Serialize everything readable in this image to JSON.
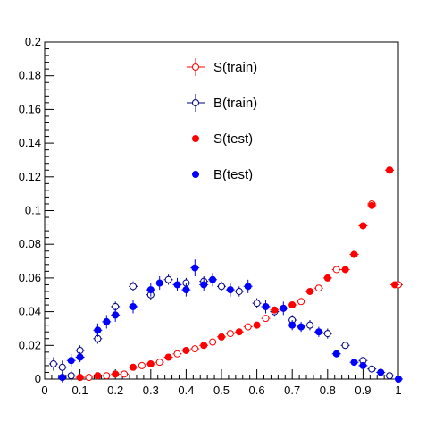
{
  "chart_data": {
    "type": "scatter",
    "xlim": [
      0,
      1
    ],
    "ylim": [
      0,
      0.2
    ],
    "x_ticks": [
      "0",
      "0.1",
      "0.2",
      "0.3",
      "0.4",
      "0.5",
      "0.6",
      "0.7",
      "0.8",
      "0.9",
      "1"
    ],
    "y_ticks": [
      "0",
      "0.02",
      "0.04",
      "0.06",
      "0.08",
      "0.1",
      "0.12",
      "0.14",
      "0.16",
      "0.18",
      "0.2"
    ],
    "x_tick_values": [
      0,
      0.1,
      0.2,
      0.3,
      0.4,
      0.5,
      0.6,
      0.7,
      0.8,
      0.9,
      1.0
    ],
    "y_tick_values": [
      0,
      0.02,
      0.04,
      0.06,
      0.08,
      0.1,
      0.12,
      0.14,
      0.16,
      0.18,
      0.2
    ],
    "grid": false,
    "legend_placement": "top-center",
    "series": [
      {
        "name": "S(train)",
        "color": "#ff0000",
        "marker": "open-circle",
        "error_bars": true,
        "points": [
          {
            "x": 0.125,
            "y": 0.001,
            "err": 0.0005
          },
          {
            "x": 0.175,
            "y": 0.002,
            "err": 0.0006
          },
          {
            "x": 0.225,
            "y": 0.003,
            "err": 0.0007
          },
          {
            "x": 0.275,
            "y": 0.008,
            "err": 0.001
          },
          {
            "x": 0.325,
            "y": 0.01,
            "err": 0.001
          },
          {
            "x": 0.375,
            "y": 0.015,
            "err": 0.001
          },
          {
            "x": 0.425,
            "y": 0.018,
            "err": 0.0012
          },
          {
            "x": 0.475,
            "y": 0.022,
            "err": 0.0013
          },
          {
            "x": 0.525,
            "y": 0.027,
            "err": 0.0014
          },
          {
            "x": 0.575,
            "y": 0.031,
            "err": 0.0015
          },
          {
            "x": 0.625,
            "y": 0.036,
            "err": 0.0016
          },
          {
            "x": 0.675,
            "y": 0.042,
            "err": 0.0017
          },
          {
            "x": 0.725,
            "y": 0.046,
            "err": 0.0018
          },
          {
            "x": 0.775,
            "y": 0.054,
            "err": 0.002
          },
          {
            "x": 0.825,
            "y": 0.065,
            "err": 0.002
          },
          {
            "x": 0.875,
            "y": 0.074,
            "err": 0.002
          },
          {
            "x": 0.925,
            "y": 0.104,
            "err": 0.002
          },
          {
            "x": 0.975,
            "y": 0.124,
            "err": 0.002
          },
          {
            "x": 1.0,
            "y": 0.056,
            "err": 0.001
          }
        ]
      },
      {
        "name": "B(train)",
        "color": "#000080",
        "marker": "open-circle",
        "error_bars": true,
        "points": [
          {
            "x": 0.025,
            "y": 0.009,
            "err": 0.004
          },
          {
            "x": 0.05,
            "y": 0.007,
            "err": 0.004
          },
          {
            "x": 0.075,
            "y": 0.002,
            "err": 0.003
          },
          {
            "x": 0.1,
            "y": 0.017,
            "err": 0.003
          },
          {
            "x": 0.15,
            "y": 0.024,
            "err": 0.003
          },
          {
            "x": 0.2,
            "y": 0.043,
            "err": 0.003
          },
          {
            "x": 0.25,
            "y": 0.055,
            "err": 0.003
          },
          {
            "x": 0.3,
            "y": 0.05,
            "err": 0.003
          },
          {
            "x": 0.35,
            "y": 0.059,
            "err": 0.003
          },
          {
            "x": 0.4,
            "y": 0.057,
            "err": 0.003
          },
          {
            "x": 0.45,
            "y": 0.058,
            "err": 0.003
          },
          {
            "x": 0.5,
            "y": 0.055,
            "err": 0.003
          },
          {
            "x": 0.55,
            "y": 0.052,
            "err": 0.003
          },
          {
            "x": 0.6,
            "y": 0.045,
            "err": 0.003
          },
          {
            "x": 0.65,
            "y": 0.04,
            "err": 0.003
          },
          {
            "x": 0.7,
            "y": 0.035,
            "err": 0.003
          },
          {
            "x": 0.75,
            "y": 0.032,
            "err": 0.003
          },
          {
            "x": 0.8,
            "y": 0.027,
            "err": 0.003
          },
          {
            "x": 0.85,
            "y": 0.02,
            "err": 0.002
          },
          {
            "x": 0.9,
            "y": 0.011,
            "err": 0.002
          },
          {
            "x": 0.925,
            "y": 0.006,
            "err": 0.002
          },
          {
            "x": 0.975,
            "y": 0.002,
            "err": 0.002
          }
        ]
      },
      {
        "name": "S(test)",
        "color": "#ff0000",
        "marker": "filled-circle",
        "error_bars": true,
        "points": [
          {
            "x": 0.1,
            "y": 0.001,
            "err": 0.0005
          },
          {
            "x": 0.15,
            "y": 0.002,
            "err": 0.0006
          },
          {
            "x": 0.2,
            "y": 0.003,
            "err": 0.0007
          },
          {
            "x": 0.25,
            "y": 0.007,
            "err": 0.001
          },
          {
            "x": 0.3,
            "y": 0.009,
            "err": 0.001
          },
          {
            "x": 0.35,
            "y": 0.013,
            "err": 0.001
          },
          {
            "x": 0.4,
            "y": 0.017,
            "err": 0.0012
          },
          {
            "x": 0.45,
            "y": 0.02,
            "err": 0.0013
          },
          {
            "x": 0.5,
            "y": 0.025,
            "err": 0.0014
          },
          {
            "x": 0.55,
            "y": 0.028,
            "err": 0.0015
          },
          {
            "x": 0.6,
            "y": 0.032,
            "err": 0.0016
          },
          {
            "x": 0.65,
            "y": 0.041,
            "err": 0.0017
          },
          {
            "x": 0.7,
            "y": 0.044,
            "err": 0.0018
          },
          {
            "x": 0.75,
            "y": 0.052,
            "err": 0.002
          },
          {
            "x": 0.8,
            "y": 0.06,
            "err": 0.002
          },
          {
            "x": 0.85,
            "y": 0.065,
            "err": 0.002
          },
          {
            "x": 0.875,
            "y": 0.074,
            "err": 0.002
          },
          {
            "x": 0.9,
            "y": 0.091,
            "err": 0.002
          },
          {
            "x": 0.925,
            "y": 0.103,
            "err": 0.002
          },
          {
            "x": 0.975,
            "y": 0.124,
            "err": 0.002
          },
          {
            "x": 0.99,
            "y": 0.056,
            "err": 0.001
          }
        ]
      },
      {
        "name": "B(test)",
        "color": "#0000ff",
        "marker": "filled-circle",
        "error_bars": true,
        "points": [
          {
            "x": 0.05,
            "y": 0.001,
            "err": 0.003
          },
          {
            "x": 0.075,
            "y": 0.011,
            "err": 0.004
          },
          {
            "x": 0.1,
            "y": 0.013,
            "err": 0.003
          },
          {
            "x": 0.15,
            "y": 0.029,
            "err": 0.004
          },
          {
            "x": 0.175,
            "y": 0.034,
            "err": 0.004
          },
          {
            "x": 0.2,
            "y": 0.038,
            "err": 0.004
          },
          {
            "x": 0.25,
            "y": 0.043,
            "err": 0.004
          },
          {
            "x": 0.3,
            "y": 0.053,
            "err": 0.004
          },
          {
            "x": 0.325,
            "y": 0.057,
            "err": 0.004
          },
          {
            "x": 0.375,
            "y": 0.056,
            "err": 0.004
          },
          {
            "x": 0.4,
            "y": 0.053,
            "err": 0.004
          },
          {
            "x": 0.425,
            "y": 0.066,
            "err": 0.005
          },
          {
            "x": 0.45,
            "y": 0.056,
            "err": 0.004
          },
          {
            "x": 0.475,
            "y": 0.059,
            "err": 0.004
          },
          {
            "x": 0.525,
            "y": 0.053,
            "err": 0.004
          },
          {
            "x": 0.575,
            "y": 0.055,
            "err": 0.004
          },
          {
            "x": 0.625,
            "y": 0.043,
            "err": 0.004
          },
          {
            "x": 0.675,
            "y": 0.042,
            "err": 0.004
          },
          {
            "x": 0.7,
            "y": 0.032,
            "err": 0.003
          },
          {
            "x": 0.725,
            "y": 0.031,
            "err": 0.003
          },
          {
            "x": 0.775,
            "y": 0.028,
            "err": 0.003
          },
          {
            "x": 0.825,
            "y": 0.015,
            "err": 0.002
          },
          {
            "x": 0.875,
            "y": 0.01,
            "err": 0.002
          },
          {
            "x": 0.9,
            "y": 0.008,
            "err": 0.002
          },
          {
            "x": 0.95,
            "y": 0.004,
            "err": 0.002
          },
          {
            "x": 1.0,
            "y": 0.0,
            "err": 0.001
          }
        ]
      }
    ]
  }
}
